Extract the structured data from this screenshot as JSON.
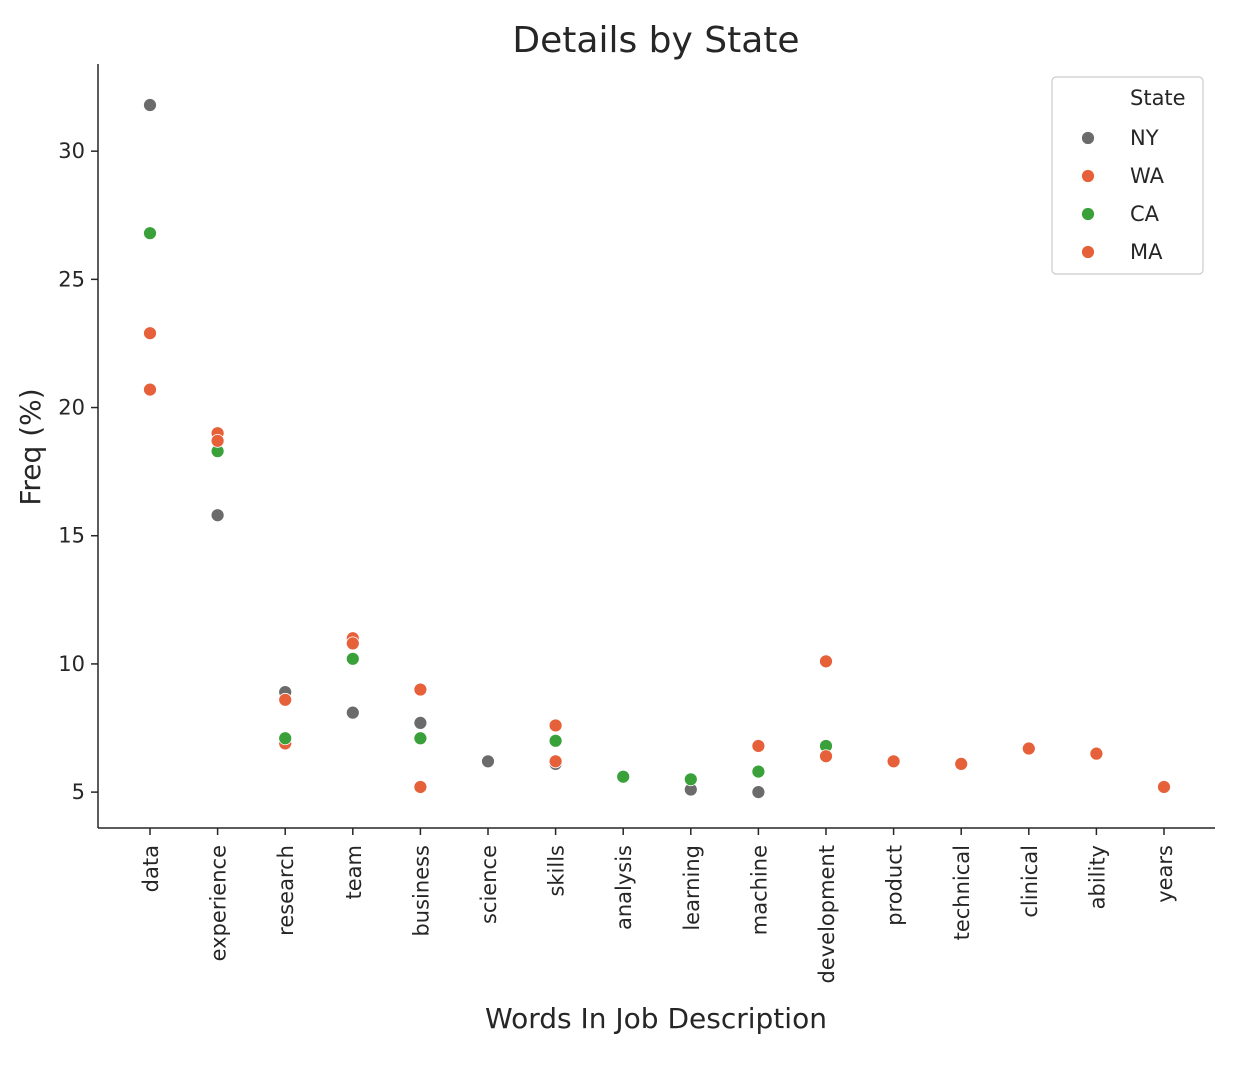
{
  "chart_data": {
    "type": "scatter",
    "title": "Details by State",
    "xlabel": "Words In Job Description",
    "ylabel": "Freq (%)",
    "ylim": [
      3.6,
      33.4
    ],
    "yticks": [
      5,
      10,
      15,
      20,
      25,
      30
    ],
    "grid": false,
    "legend": {
      "title": "State",
      "placement": "top-right",
      "entries": [
        "NY",
        "WA",
        "CA",
        "MA"
      ]
    },
    "categories": [
      "data",
      "experience",
      "research",
      "team",
      "business",
      "science",
      "skills",
      "analysis",
      "learning",
      "machine",
      "development",
      "product",
      "technical",
      "clinical",
      "ability",
      "years"
    ],
    "series": [
      {
        "name": "NY",
        "color": "#6b6b6b",
        "points": [
          {
            "x": "data",
            "y": 31.8
          },
          {
            "x": "experience",
            "y": 15.8
          },
          {
            "x": "research",
            "y": 8.9
          },
          {
            "x": "team",
            "y": 8.1
          },
          {
            "x": "business",
            "y": 7.7
          },
          {
            "x": "science",
            "y": 6.2
          },
          {
            "x": "skills",
            "y": 6.1
          },
          {
            "x": "learning",
            "y": 5.1
          },
          {
            "x": "machine",
            "y": 5.0
          }
        ]
      },
      {
        "name": "WA",
        "color": "#e6603a",
        "points": [
          {
            "x": "data",
            "y": 22.9
          },
          {
            "x": "experience",
            "y": 19.0
          },
          {
            "x": "research",
            "y": 6.9
          },
          {
            "x": "team",
            "y": 11.0
          },
          {
            "x": "business",
            "y": 9.0
          },
          {
            "x": "skills",
            "y": 7.6
          },
          {
            "x": "machine",
            "y": 6.8
          },
          {
            "x": "development",
            "y": 10.1
          },
          {
            "x": "clinical",
            "y": 6.7
          },
          {
            "x": "ability",
            "y": 6.5
          }
        ]
      },
      {
        "name": "CA",
        "color": "#3aa13a",
        "points": [
          {
            "x": "data",
            "y": 26.8
          },
          {
            "x": "experience",
            "y": 18.3
          },
          {
            "x": "research",
            "y": 7.1
          },
          {
            "x": "team",
            "y": 10.2
          },
          {
            "x": "business",
            "y": 7.1
          },
          {
            "x": "skills",
            "y": 7.0
          },
          {
            "x": "analysis",
            "y": 5.6
          },
          {
            "x": "learning",
            "y": 5.5
          },
          {
            "x": "machine",
            "y": 5.8
          },
          {
            "x": "development",
            "y": 6.8
          }
        ]
      },
      {
        "name": "MA",
        "color": "#e6603a",
        "points": [
          {
            "x": "data",
            "y": 20.7
          },
          {
            "x": "experience",
            "y": 18.7
          },
          {
            "x": "research",
            "y": 8.6
          },
          {
            "x": "team",
            "y": 10.8
          },
          {
            "x": "business",
            "y": 5.2
          },
          {
            "x": "skills",
            "y": 6.2
          },
          {
            "x": "development",
            "y": 6.4
          },
          {
            "x": "product",
            "y": 6.2
          },
          {
            "x": "technical",
            "y": 6.1
          },
          {
            "x": "years",
            "y": 5.2
          }
        ]
      }
    ]
  }
}
